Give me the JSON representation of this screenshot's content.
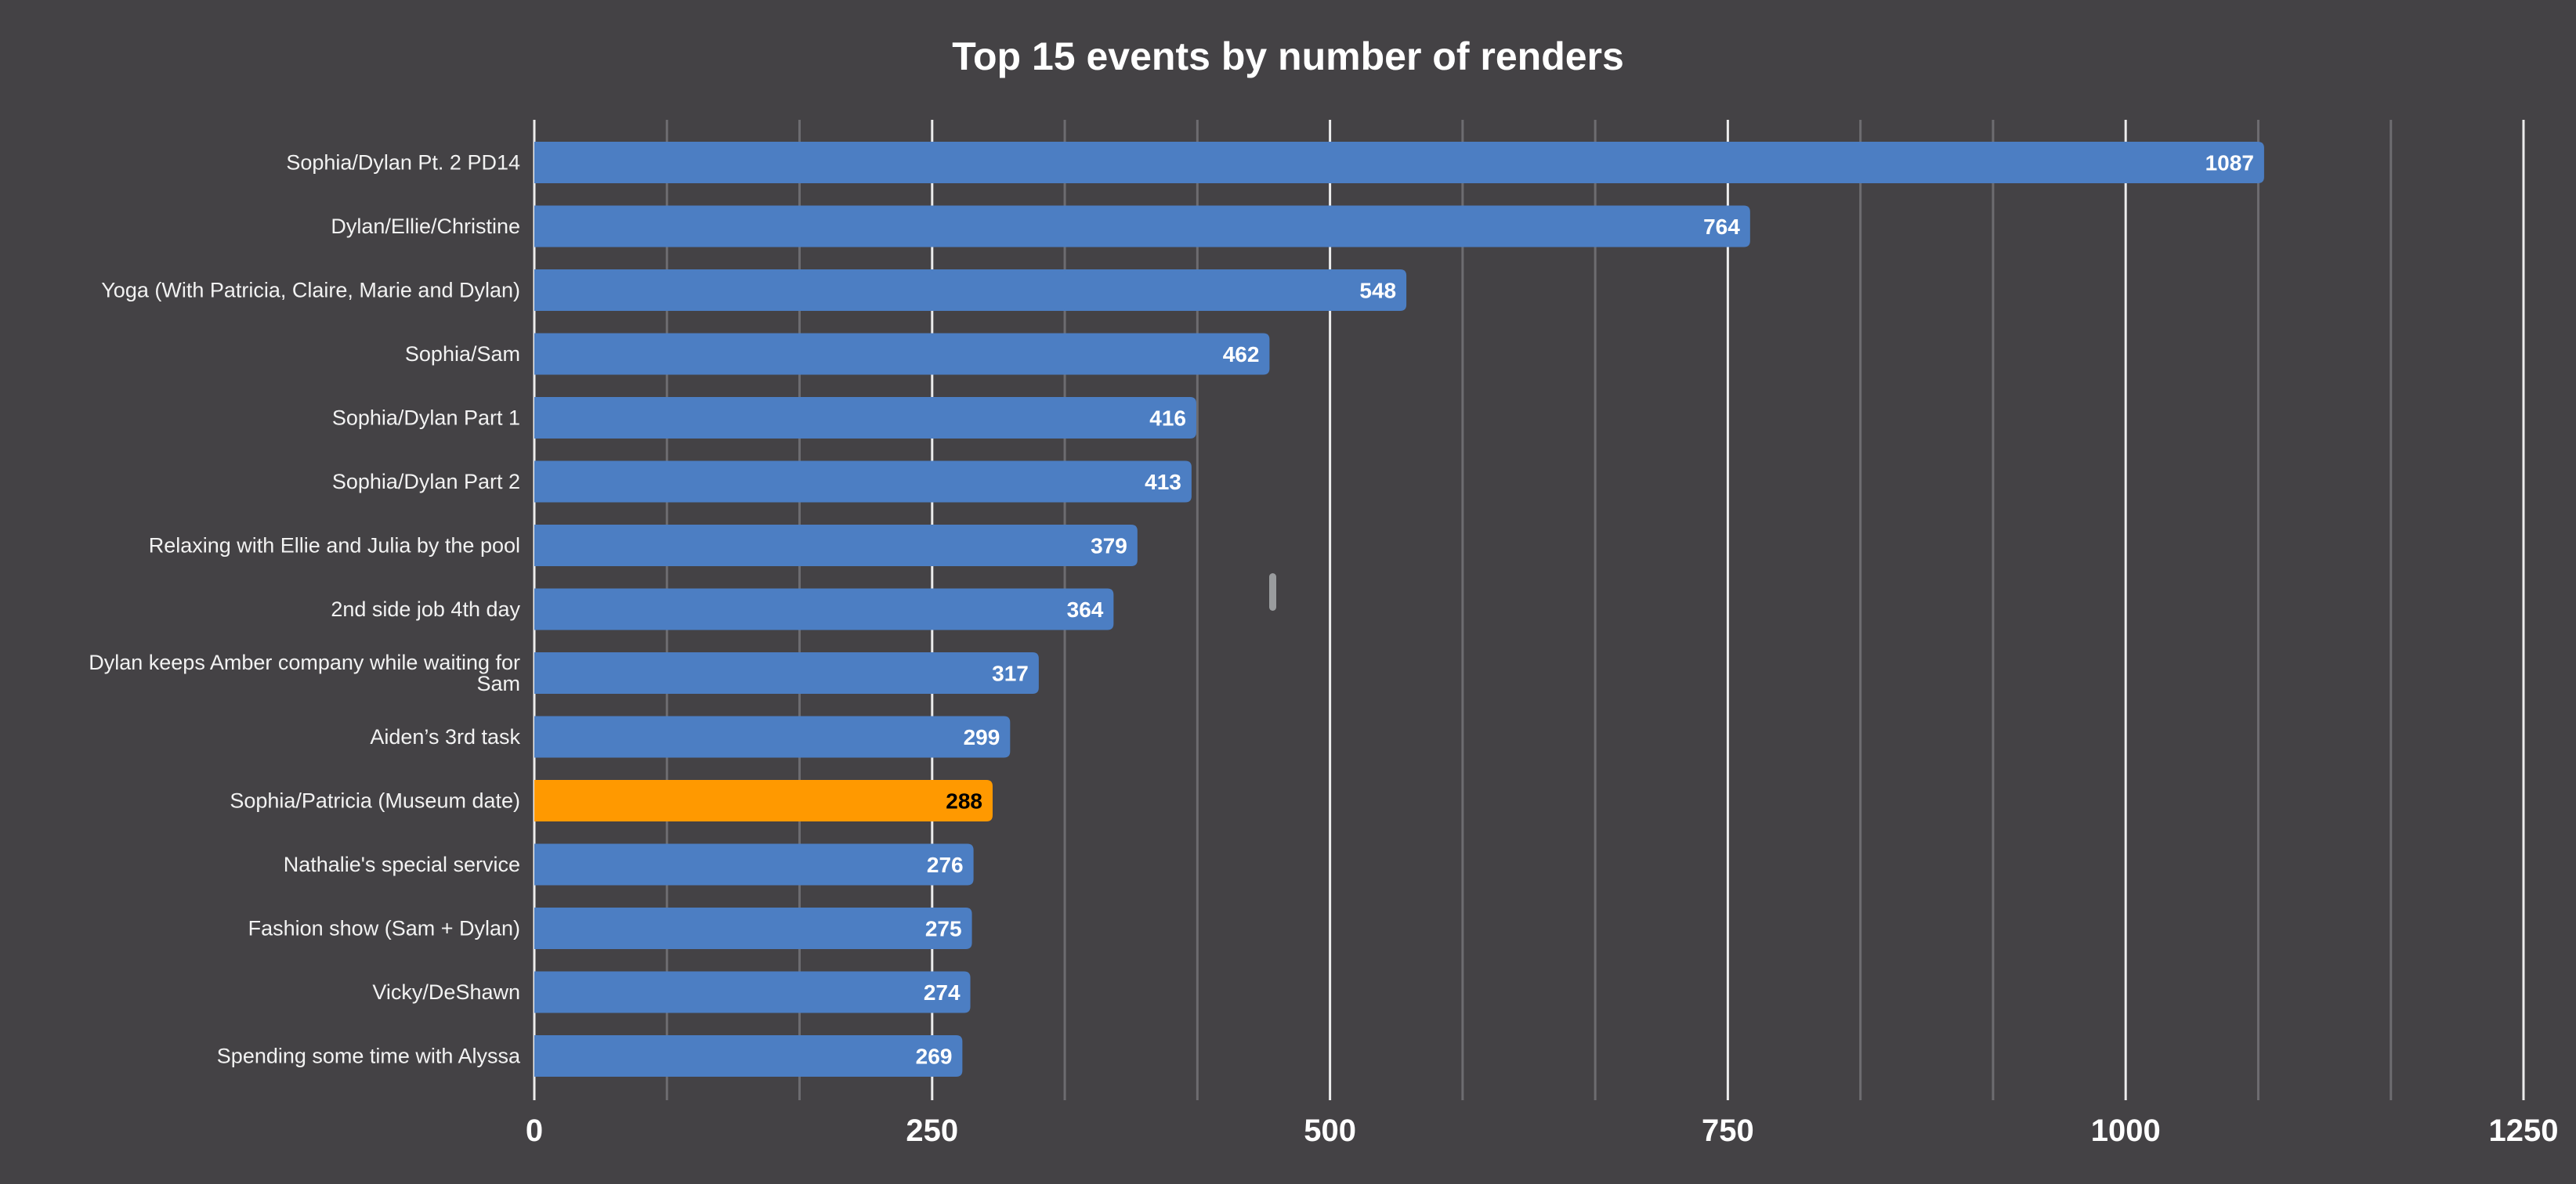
{
  "chart_data": {
    "type": "bar",
    "orientation": "horizontal",
    "title": "Top 15 events by number of renders",
    "xlabel": "",
    "ylabel": "",
    "categories": [
      "Sophia/Dylan Pt. 2 PD14",
      "Dylan/Ellie/Christine",
      "Yoga (With Patricia, Claire, Marie and Dylan)",
      "Sophia/Sam",
      "Sophia/Dylan Part 1",
      "Sophia/Dylan Part 2",
      "Relaxing with Ellie and Julia by the pool",
      "2nd side job 4th day",
      "Dylan keeps Amber company while waiting for Sam",
      "Aiden’s 3rd task",
      "Sophia/Patricia (Museum date)",
      "Nathalie's special service",
      "Fashion show (Sam + Dylan)",
      "Vicky/DeShawn",
      "Spending some time with Alyssa"
    ],
    "category_lines": [
      [
        "Sophia/Dylan Pt. 2 PD14"
      ],
      [
        "Dylan/Ellie/Christine"
      ],
      [
        "Yoga (With Patricia, Claire, Marie and Dylan)"
      ],
      [
        "Sophia/Sam"
      ],
      [
        "Sophia/Dylan Part 1"
      ],
      [
        "Sophia/Dylan Part 2"
      ],
      [
        "Relaxing with Ellie and Julia by the pool"
      ],
      [
        "2nd side job 4th day"
      ],
      [
        "Dylan keeps Amber company while waiting for",
        "Sam"
      ],
      [
        "Aiden’s 3rd task"
      ],
      [
        "Sophia/Patricia (Museum date)"
      ],
      [
        "Nathalie's special service"
      ],
      [
        "Fashion show (Sam + Dylan)"
      ],
      [
        "Vicky/DeShawn"
      ],
      [
        "Spending some time with Alyssa"
      ]
    ],
    "values": [
      1087,
      764,
      548,
      462,
      416,
      413,
      379,
      364,
      317,
      299,
      288,
      276,
      275,
      274,
      269
    ],
    "value_labels": [
      "1087",
      "764",
      "548",
      "462",
      "416",
      "413",
      "379",
      "364",
      "317",
      "299",
      "288",
      "276",
      "275",
      "274",
      "269"
    ],
    "highlight_index": 10,
    "xlim": [
      0,
      1250
    ],
    "major_ticks": [
      0,
      250,
      500,
      750,
      1000,
      1250
    ],
    "tick_labels": [
      "0",
      "250",
      "500",
      "750",
      "1000",
      "1250"
    ],
    "minor_gridlines_per_major": 3,
    "grid": true,
    "legend": "none",
    "colors": {
      "background": "#444245",
      "bar": "#4c7ec3",
      "highlight_bar": "#ff9900",
      "value_text": "#ffffff",
      "highlight_value_text": "#000000",
      "major_grid": "#ececec",
      "minor_grid": "#6d6c70",
      "text": "#ffffff",
      "handle": "#9a9c9e"
    }
  }
}
